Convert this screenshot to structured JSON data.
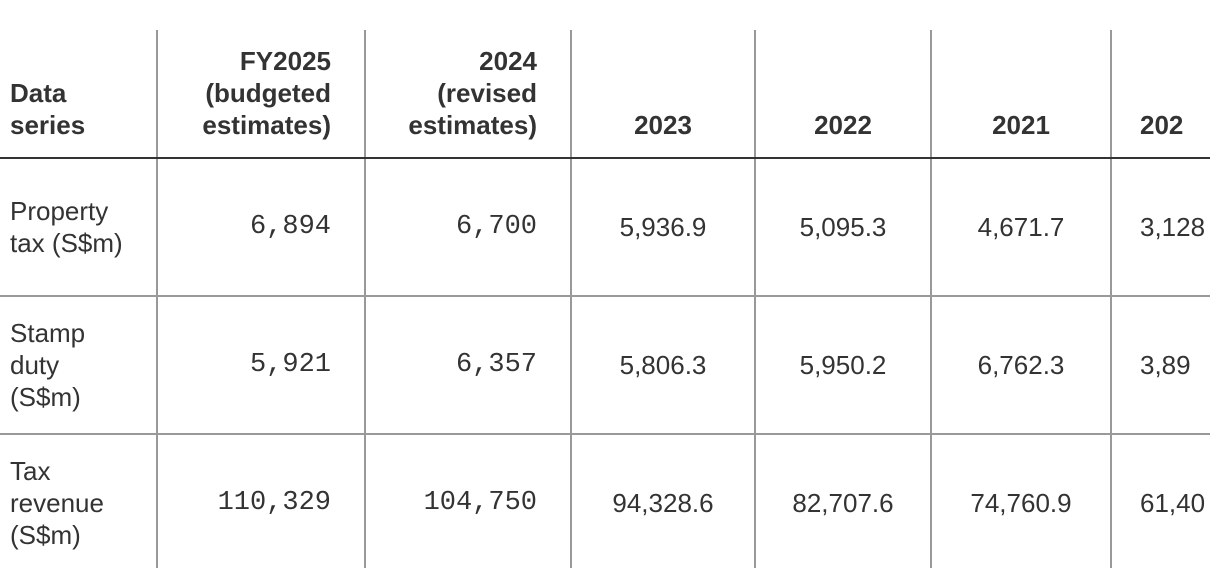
{
  "table": {
    "header": [
      "Data series",
      "FY2025 (budgeted estimates)",
      "2024 (revised estimates)",
      "2023",
      "2022",
      "2021",
      "202"
    ],
    "rows": [
      [
        "Property tax (S$m)",
        "6,894",
        "6,700",
        "5,936.9",
        "5,095.3",
        "4,671.7",
        "3,128"
      ],
      [
        "Stamp duty (S$m)",
        "5,921",
        "6,357",
        "5,806.3",
        "5,950.2",
        "6,762.3",
        "3,89"
      ],
      [
        "Tax revenue (S$m)",
        "110,329",
        "104,750",
        "94,328.6",
        "82,707.6",
        "74,760.9",
        "61,40"
      ]
    ]
  }
}
